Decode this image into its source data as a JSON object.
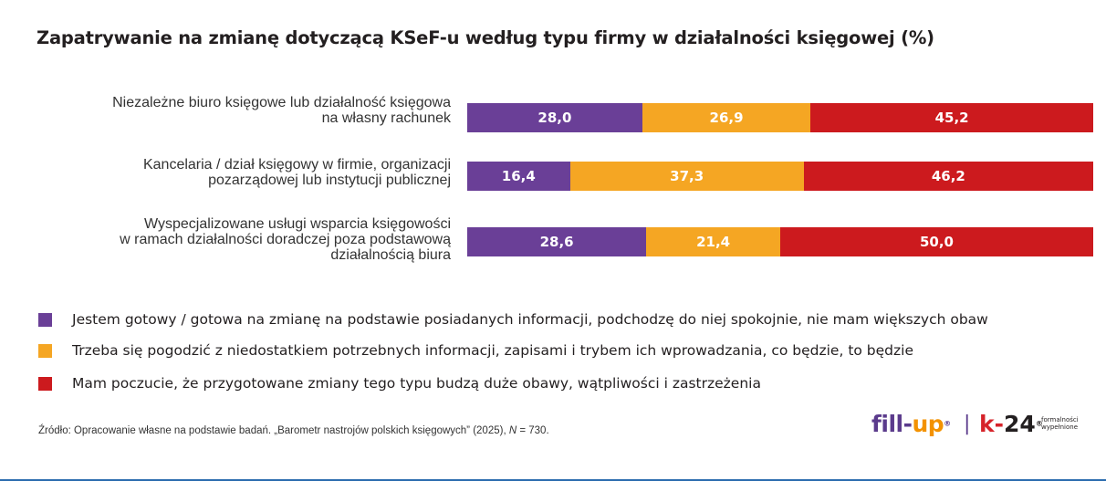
{
  "title": "Zapatrywanie na zmianę dotyczącą KSeF-u według typu firmy w działalności księgowej (%)",
  "colors": {
    "ready": "#6a3f97",
    "resigned": "#f5a623",
    "concerned": "#cc1a1e",
    "logo_purple": "#5b3b8c",
    "logo_orange": "#f39200",
    "logo_red": "#d6232a"
  },
  "chart_data": {
    "type": "bar",
    "orientation": "horizontal",
    "stacked": true,
    "title": "Zapatrywanie na zmianę dotyczącą KSeF-u według typu firmy w działalności księgowej (%)",
    "categories": [
      [
        "Niezależne biuro księgowe lub działalność księgowa",
        "na własny rachunek"
      ],
      [
        "Kancelaria / dział księgowy w firmie, organizacji",
        "pozarządowej lub instytucji publicznej"
      ],
      [
        "Wyspecjalizowane usługi wsparcia księgowości",
        "w ramach działalności doradczej poza podstawową",
        "działalnością biura"
      ]
    ],
    "series": [
      {
        "name": "Jestem gotowy / gotowa na zmianę na podstawie posiadanych informacji, podchodzę do niej spokojnie, nie mam większych obaw",
        "values": [
          28.0,
          16.4,
          28.6
        ],
        "labels": [
          "28,0",
          "16,4",
          "28,6"
        ]
      },
      {
        "name": "Trzeba się pogodzić z niedostatkiem potrzebnych informacji, zapisami i trybem ich wprowadzania, co będzie, to będzie",
        "values": [
          26.9,
          37.3,
          21.4
        ],
        "labels": [
          "26,9",
          "37,3",
          "21,4"
        ]
      },
      {
        "name": "Mam poczucie, że przygotowane zmiany tego typu budzą duże obawy, wątpliwości i zastrzeżenia",
        "values": [
          45.2,
          46.2,
          50.0
        ],
        "labels": [
          "45,2",
          "46,2",
          "50,0"
        ]
      }
    ],
    "xlim": [
      0,
      100
    ],
    "legend": "bottom"
  },
  "source": {
    "prefix": "Źródło: Opracowanie własne na podstawie badań. „Barometr nastrojów polskich księgowych” (2025), ",
    "n_label": "N",
    "n_value": " = 730."
  },
  "logos": {
    "fillup_fill": "fill-",
    "fillup_up": "up",
    "fillup_mark": "®",
    "separator": "|",
    "k24_k": "k-",
    "k24_num": "24",
    "k24_mark": "®",
    "k24_tag1": "formalności",
    "k24_tag2": "wypełnione"
  }
}
